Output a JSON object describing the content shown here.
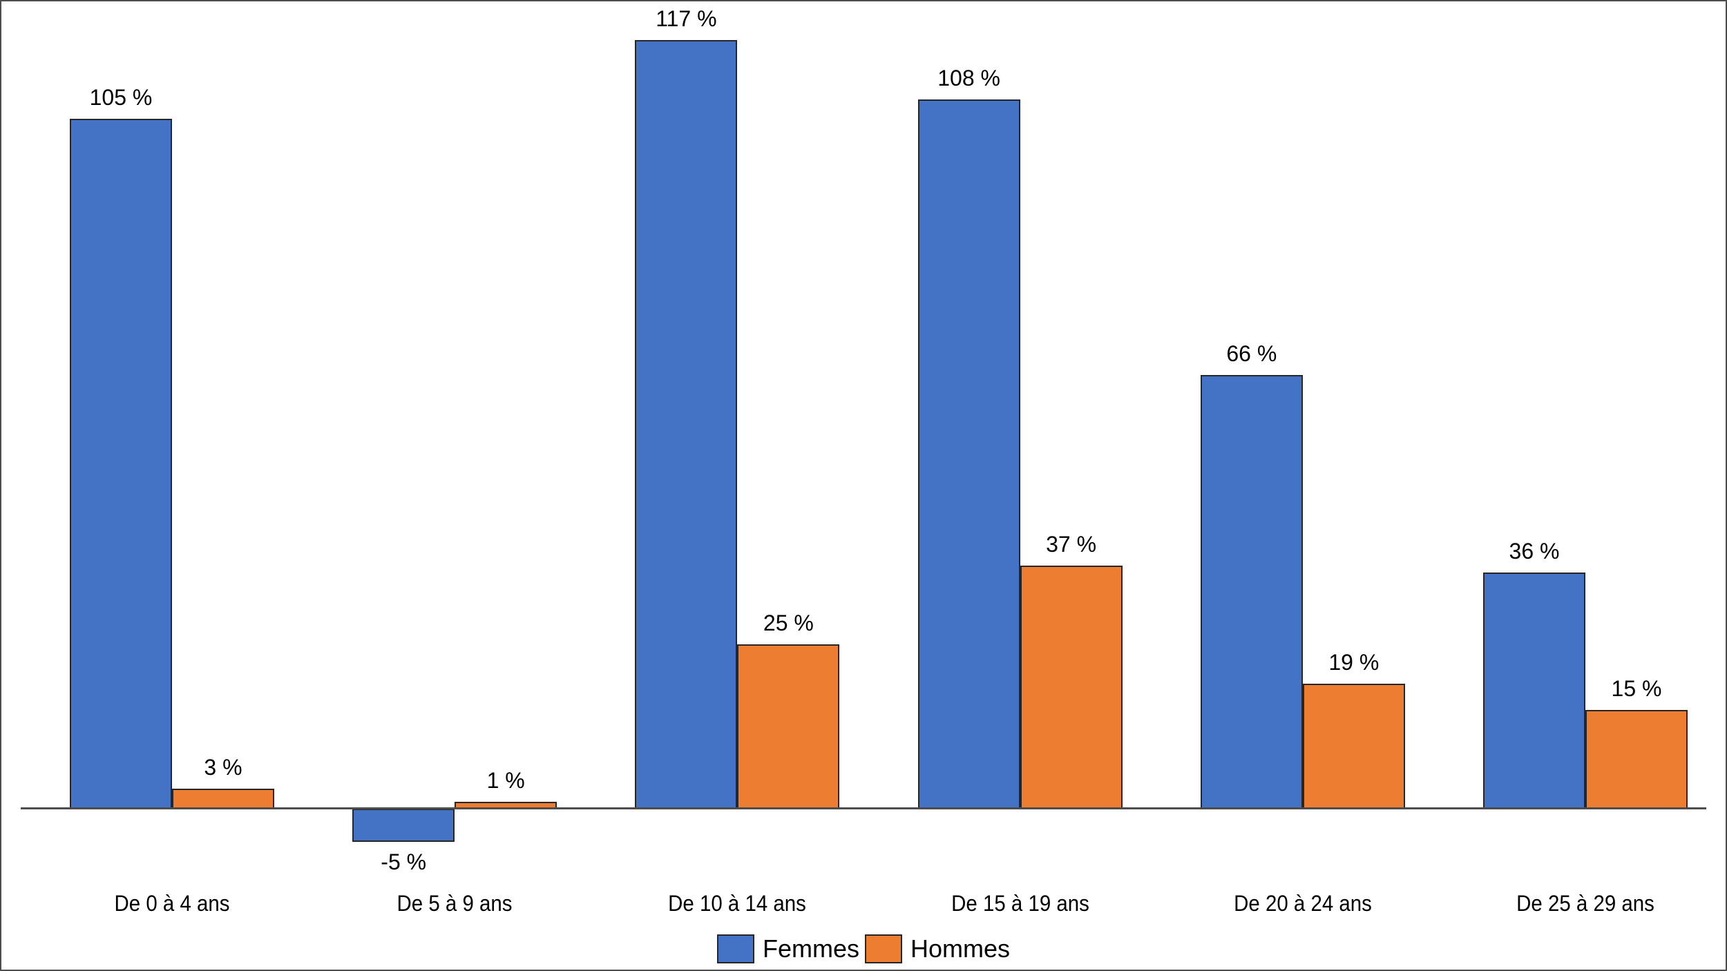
{
  "chart_data": {
    "type": "bar",
    "categories": [
      "De 0 à 4 ans",
      "De 5 à 9 ans",
      "De 10 à 14 ans",
      "De 15 à 19 ans",
      "De 20 à 24 ans",
      "De 25 à 29 ans"
    ],
    "series": [
      {
        "name": "Femmes",
        "color": "#4472C4",
        "values": [
          105,
          -5,
          117,
          108,
          66,
          36
        ]
      },
      {
        "name": "Hommes",
        "color": "#ED7D31",
        "values": [
          3,
          1,
          25,
          37,
          19,
          15
        ]
      }
    ],
    "data_labels": [
      [
        "105 %",
        "-5 %",
        "117 %",
        "108 %",
        "66 %",
        "36 %"
      ],
      [
        "3 %",
        "1 %",
        "25 %",
        "37 %",
        "19 %",
        "15 %"
      ]
    ],
    "value_label_suffix": " %",
    "title": "",
    "xlabel": "",
    "ylabel": "",
    "ylim": [
      -12,
      123
    ],
    "grid": false,
    "legend_position": "bottom",
    "colors": {
      "femmes": "#4472C4",
      "hommes": "#ED7D31",
      "axis": "#4D4D4D",
      "bar_border": "#262626",
      "frame_border": "#4D4D4D",
      "text": "#000000"
    }
  }
}
